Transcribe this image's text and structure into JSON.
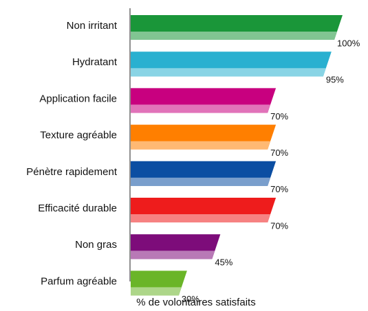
{
  "chart_data": {
    "type": "bar",
    "orientation": "horizontal",
    "categories": [
      "Non irritant",
      "Hydratant",
      "Application facile",
      "Texture agréable",
      "Pénètre rapidement",
      "Efficacité durable",
      "Non gras",
      "Parfum agréable"
    ],
    "values": [
      100,
      95,
      70,
      70,
      70,
      70,
      45,
      30
    ],
    "value_labels": [
      "100%",
      "95%",
      "70%",
      "70%",
      "70%",
      "70%",
      "45%",
      "30%"
    ],
    "colors": [
      "#1a9639",
      "#29b0d0",
      "#c8007f",
      "#ff7f00",
      "#0b4ea2",
      "#ee1c1c",
      "#7d0c7a",
      "#6ab528"
    ],
    "xlabel": "% de volontaires satisfaits",
    "xlim": [
      0,
      100
    ]
  }
}
